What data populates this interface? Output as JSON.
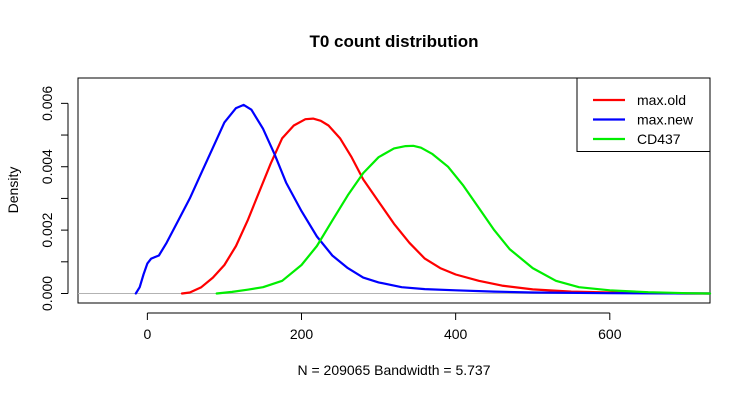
{
  "chart_data": {
    "type": "line",
    "title": "T0 count distribution",
    "xlabel": "N = 209065   Bandwidth = 5.737",
    "ylabel": "Density",
    "xlim": [
      -90,
      730
    ],
    "ylim": [
      -0.0003,
      0.0068
    ],
    "x_ticks": [
      0,
      200,
      400,
      600
    ],
    "x_tick_labels": [
      "0",
      "200",
      "400",
      "600"
    ],
    "y_ticks": [
      0.0,
      0.001,
      0.002,
      0.003,
      0.004,
      0.005,
      0.006
    ],
    "y_tick_labels": [
      "0.000",
      "",
      "0.002",
      "",
      "0.004",
      "",
      "0.006"
    ],
    "baseline": 0,
    "baseline_color": "#b3b3b3",
    "legend": {
      "position": "top-right"
    },
    "series": [
      {
        "name": "max.old",
        "color": "#ff0000",
        "x": [
          45,
          55,
          70,
          85,
          100,
          115,
          130,
          145,
          160,
          175,
          190,
          205,
          215,
          225,
          235,
          250,
          265,
          280,
          300,
          320,
          340,
          360,
          380,
          400,
          430,
          460,
          500,
          550,
          600,
          650,
          700,
          730
        ],
        "y": [
          0.0,
          3e-05,
          0.0002,
          0.0005,
          0.0009,
          0.0015,
          0.0023,
          0.0032,
          0.0041,
          0.0049,
          0.0053,
          0.0055,
          0.00552,
          0.00545,
          0.0053,
          0.0049,
          0.0043,
          0.0036,
          0.0029,
          0.0022,
          0.0016,
          0.0011,
          0.0008,
          0.0006,
          0.0004,
          0.00025,
          0.00013,
          6e-05,
          3e-05,
          1e-05,
          0.0,
          0.0
        ]
      },
      {
        "name": "max.new",
        "color": "#0000ff",
        "x": [
          -15,
          -10,
          -5,
          0,
          5,
          10,
          15,
          25,
          40,
          55,
          70,
          85,
          100,
          115,
          125,
          135,
          150,
          165,
          180,
          200,
          220,
          240,
          260,
          280,
          300,
          330,
          360,
          400,
          450,
          500,
          600,
          730
        ],
        "y": [
          0.0,
          0.0002,
          0.0006,
          0.00095,
          0.0011,
          0.00115,
          0.0012,
          0.0016,
          0.0023,
          0.003,
          0.0038,
          0.0046,
          0.0054,
          0.00585,
          0.00595,
          0.0058,
          0.0052,
          0.0044,
          0.0035,
          0.0026,
          0.0018,
          0.0012,
          0.0008,
          0.0005,
          0.00035,
          0.0002,
          0.00014,
          0.0001,
          6e-05,
          3e-05,
          1e-05,
          0.0
        ]
      },
      {
        "name": "CD437",
        "color": "#00ee00",
        "x": [
          90,
          110,
          130,
          150,
          175,
          200,
          220,
          240,
          260,
          280,
          300,
          320,
          335,
          345,
          355,
          370,
          390,
          410,
          430,
          450,
          470,
          500,
          530,
          560,
          600,
          650,
          700,
          730
        ],
        "y": [
          0.0,
          5e-05,
          0.00012,
          0.0002,
          0.0004,
          0.0009,
          0.0015,
          0.0023,
          0.0031,
          0.0038,
          0.0043,
          0.00458,
          0.00465,
          0.00466,
          0.0046,
          0.0044,
          0.004,
          0.0034,
          0.0027,
          0.002,
          0.0014,
          0.0008,
          0.0004,
          0.0002,
          0.0001,
          4e-05,
          1e-05,
          0.0
        ]
      }
    ]
  }
}
